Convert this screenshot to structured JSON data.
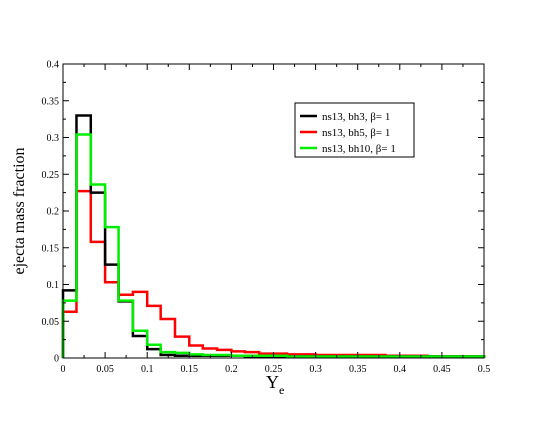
{
  "chart_data": {
    "type": "histogram-step",
    "xlabel": "Y",
    "xlabel_sub": "e",
    "ylabel": "ejecta mass fraction",
    "xlim": [
      0,
      0.5
    ],
    "ylim": [
      0,
      0.4
    ],
    "xticks": [
      "0",
      "0.05",
      "0.1",
      "0.15",
      "0.2",
      "0.25",
      "0.3",
      "0.35",
      "0.4",
      "0.45",
      "0.5"
    ],
    "yticks": [
      "0",
      "0.05",
      "0.1",
      "0.15",
      "0.2",
      "0.25",
      "0.3",
      "0.35",
      "0.4"
    ],
    "bin_edges": [
      0,
      0.016,
      0.033,
      0.05,
      0.066,
      0.083,
      0.1,
      0.116,
      0.133,
      0.15,
      0.166,
      0.183,
      0.2,
      0.216,
      0.233,
      0.25,
      0.266,
      0.283,
      0.3,
      0.316,
      0.333,
      0.35,
      0.366,
      0.383,
      0.4,
      0.416,
      0.433,
      0.45,
      0.466,
      0.483,
      0.5
    ],
    "legend_position": "upper-right",
    "series": [
      {
        "name": "ns13,   bh3, β= 1",
        "color": "#000000",
        "values": [
          0.092,
          0.33,
          0.225,
          0.127,
          0.077,
          0.03,
          0.012,
          0.004,
          0.003,
          0.003,
          0.003,
          0.003,
          0.003,
          0.002,
          0.002,
          0.002,
          0.002,
          0.002,
          0.002,
          0.002,
          0.002,
          0.002,
          0.002,
          0.002,
          0.002,
          0.002,
          0.002,
          0.002,
          0.002,
          0.002
        ]
      },
      {
        "name": "ns13,   bh5, β= 1",
        "color": "#ff0000",
        "values": [
          0.063,
          0.227,
          0.158,
          0.103,
          0.086,
          0.09,
          0.071,
          0.053,
          0.029,
          0.017,
          0.013,
          0.011,
          0.009,
          0.008,
          0.006,
          0.006,
          0.005,
          0.005,
          0.004,
          0.004,
          0.004,
          0.004,
          0.004,
          0.003,
          0.003,
          0.003,
          0.002,
          0.002,
          0.002,
          0.002
        ]
      },
      {
        "name": "ns13, bh10, β= 1",
        "color": "#00ee00",
        "values": [
          0.078,
          0.304,
          0.236,
          0.178,
          0.078,
          0.037,
          0.018,
          0.008,
          0.007,
          0.005,
          0.004,
          0.004,
          0.003,
          0.003,
          0.003,
          0.003,
          0.002,
          0.002,
          0.002,
          0.002,
          0.002,
          0.002,
          0.002,
          0.002,
          0.002,
          0.002,
          0.002,
          0.002,
          0.002,
          0.002
        ]
      }
    ]
  }
}
